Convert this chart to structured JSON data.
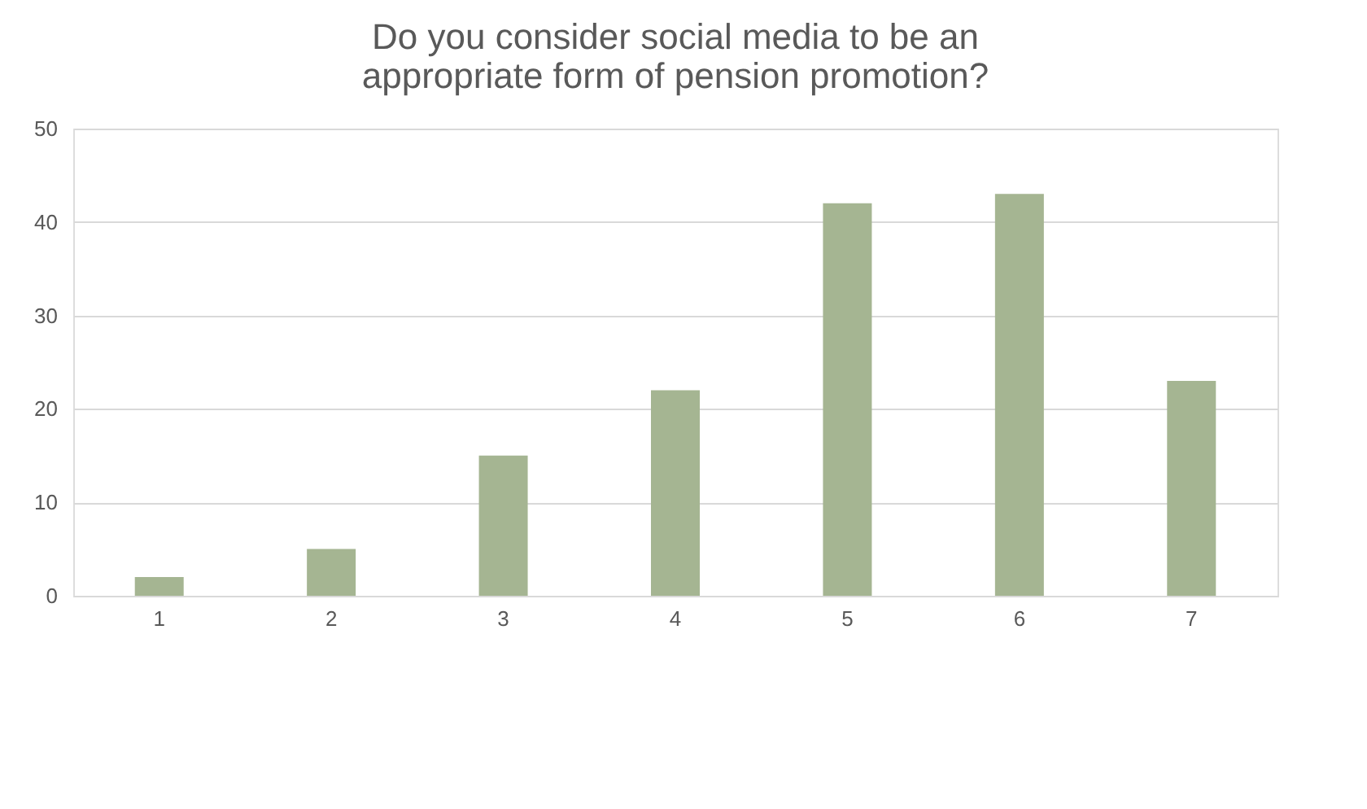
{
  "chart_data": {
    "type": "bar",
    "title": [
      "Do you consider social media to be an",
      "appropriate form of pension promotion?"
    ],
    "categories": [
      "1",
      "2",
      "3",
      "4",
      "5",
      "6",
      "7"
    ],
    "values": [
      2,
      5,
      15,
      22,
      42,
      43,
      23
    ],
    "color": "#a5b592",
    "ylim": [
      0,
      50
    ],
    "yticks": [
      0,
      10,
      20,
      30,
      40,
      50
    ],
    "grid": "y"
  }
}
